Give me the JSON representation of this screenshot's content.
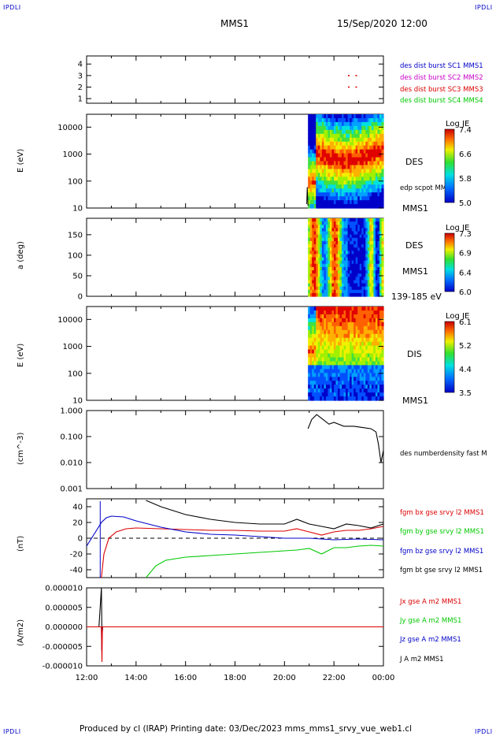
{
  "header": {
    "corner_label": "IPDLI",
    "spacecraft": "MMS1",
    "date_time": "15/Sep/2020 12:00"
  },
  "footer": {
    "text": "Produced by cl (IRAP)   Printing date: 03/Dec/2023   mms_mms1_srvy_vue_web1.cl"
  },
  "x_axis": {
    "ticks": [
      "12:00",
      "14:00",
      "16:00",
      "18:00",
      "20:00",
      "22:00",
      "00:00"
    ],
    "range_hours": [
      12,
      24
    ]
  },
  "panels": {
    "burst": {
      "ticks": [
        "4",
        "3",
        "2",
        "1"
      ],
      "legend": [
        {
          "text": "des dist burst SC1 MMS1",
          "color": "#0000c8"
        },
        {
          "text": "des dist burst SC2 MMS2",
          "color": "#c800c8"
        },
        {
          "text": "des dist burst SC3 MMS3",
          "color": "#dc0000"
        },
        {
          "text": "des dist burst SC4 MMS4",
          "color": "#00c800"
        }
      ]
    },
    "des_energy": {
      "ylabel": "E (eV)",
      "ticks": [
        "10000",
        "1000",
        "100",
        "10"
      ],
      "label_species": "DES",
      "label_scpot": "edp scpot MMS1",
      "label_sc": "MMS1",
      "colorbar": {
        "title": "Log JE",
        "ticks": [
          "7.4",
          "6.6",
          "5.8",
          "5.0"
        ]
      }
    },
    "des_pitch": {
      "ylabel": "a (deg)",
      "ticks": [
        "150",
        "100",
        "50",
        "0"
      ],
      "label_species": "DES",
      "label_sc": "MMS1",
      "label_range": "139-185 eV",
      "colorbar": {
        "title": "Log JE",
        "ticks": [
          "7.3",
          "6.9",
          "6.4",
          "6.0"
        ]
      }
    },
    "dis_energy": {
      "ylabel": "E (eV)",
      "ticks": [
        "10000",
        "1000",
        "100",
        "10"
      ],
      "label_species": "DIS",
      "label_sc": "MMS1",
      "colorbar": {
        "title": "Log JE",
        "ticks": [
          "6.1",
          "5.2",
          "4.4",
          "3.5"
        ]
      }
    },
    "density": {
      "ylabel": "(cm^-3)",
      "ticks": [
        "1.000",
        "0.100",
        "0.010",
        "0.001"
      ],
      "legend": "des numberdensity fast M"
    },
    "bfield": {
      "ylabel": "(nT)",
      "ticks": [
        "40",
        "20",
        "0",
        "-20",
        "-40"
      ],
      "legend": [
        {
          "text": "fgm bx gse srvy l2 MMS1",
          "color": "#dc0000"
        },
        {
          "text": "fgm by gse srvy l2 MMS1",
          "color": "#00c800"
        },
        {
          "text": "fgm bz gse srvy l2 MMS1",
          "color": "#0000c8"
        },
        {
          "text": "fgm bt gse srvy l2 MMS1",
          "color": "#000000"
        }
      ]
    },
    "current": {
      "ylabel": "(A/m2)",
      "ticks": [
        "0.000010",
        "0.000005",
        "0.000000",
        "-0.000005",
        "-0.000010"
      ],
      "legend": [
        {
          "text": "Jx gse A m2 MMS1",
          "color": "#dc0000"
        },
        {
          "text": "Jy gse A m2 MMS1",
          "color": "#00c800"
        },
        {
          "text": "Jz gse A m2 MMS1",
          "color": "#0000c8"
        },
        {
          "text": "J A m2 MMS1",
          "color": "#000000"
        }
      ]
    }
  },
  "chart_data": {
    "type": "line",
    "title": "MMS1 15/Sep/2020 12:00",
    "xlabel": "",
    "x_range": [
      "12:00",
      "00:00"
    ],
    "series": [
      {
        "name": "fgm bx gse srvy l2 MMS1",
        "panel": "bfield",
        "x_hours": [
          12.6,
          12.7,
          12.9,
          13.2,
          13.6,
          14.0,
          15.0,
          16.0,
          17.0,
          18.0,
          19.0,
          20.0,
          20.5,
          21.0,
          21.5,
          22.0,
          22.5,
          23.0,
          23.5,
          24.0
        ],
        "values": [
          -50,
          -20,
          0,
          8,
          12,
          13,
          12,
          11,
          10,
          10,
          9,
          9,
          12,
          8,
          4,
          8,
          10,
          10,
          12,
          15
        ]
      },
      {
        "name": "fgm by gse srvy l2 MMS1",
        "panel": "bfield",
        "x_hours": [
          14.4,
          14.8,
          15.2,
          16.0,
          17.0,
          18.0,
          19.0,
          20.0,
          20.5,
          21.0,
          21.5,
          22.0,
          22.5,
          23.0,
          23.5,
          24.0
        ],
        "values": [
          -50,
          -35,
          -28,
          -24,
          -22,
          -20,
          -18,
          -16,
          -15,
          -13,
          -20,
          -12,
          -12,
          -10,
          -9,
          -10
        ]
      },
      {
        "name": "fgm bz gse srvy l2 MMS1",
        "panel": "bfield",
        "x_hours": [
          12.0,
          12.2,
          12.4,
          12.6,
          12.8,
          13.0,
          13.5,
          14.0,
          15.0,
          16.0,
          17.0,
          18.0,
          19.0,
          20.0,
          21.0,
          22.0,
          23.0,
          24.0
        ],
        "values": [
          -10,
          0,
          10,
          20,
          26,
          28,
          27,
          22,
          14,
          8,
          5,
          4,
          2,
          0,
          0,
          -2,
          -1,
          -2
        ]
      },
      {
        "name": "fgm bt gse srvy l2 MMS1",
        "panel": "bfield",
        "x_hours": [
          14.4,
          15.0,
          16.0,
          17.0,
          18.0,
          19.0,
          20.0,
          20.5,
          21.0,
          21.5,
          22.0,
          22.5,
          23.0,
          23.5,
          24.0
        ],
        "values": [
          48,
          40,
          30,
          24,
          20,
          18,
          18,
          24,
          18,
          15,
          12,
          18,
          16,
          13,
          18
        ]
      },
      {
        "name": "des numberdensity fast M",
        "panel": "density",
        "x_hours": [
          20.95,
          21.1,
          21.3,
          21.5,
          21.8,
          22.0,
          22.4,
          22.8,
          23.2,
          23.5,
          23.7,
          23.8,
          23.9,
          24.0
        ],
        "values": [
          0.2,
          0.45,
          0.7,
          0.5,
          0.3,
          0.35,
          0.25,
          0.25,
          0.22,
          0.2,
          0.15,
          0.05,
          0.01,
          0.03
        ]
      },
      {
        "name": "J A m2 MMS1",
        "panel": "current",
        "x_hours": [
          12.0,
          12.5,
          12.6,
          12.62,
          12.65,
          13.0,
          16.0,
          20.0,
          24.0
        ],
        "values": [
          0,
          0,
          1e-05,
          -3e-06,
          0,
          0,
          0,
          0,
          0
        ]
      },
      {
        "name": "Jz gse A m2 MMS1",
        "panel": "current",
        "x_hours": [
          12.0,
          12.6,
          12.61,
          12.63,
          13.0,
          24.0
        ],
        "values": [
          0,
          0,
          -6e-06,
          0,
          0,
          0
        ]
      },
      {
        "name": "Jx gse A m2 MMS1",
        "panel": "current",
        "x_hours": [
          12.0,
          12.6,
          12.62,
          12.64,
          13.0,
          24.0
        ],
        "values": [
          0,
          0,
          -9e-06,
          0,
          0,
          0
        ]
      }
    ],
    "burst_markers": [
      {
        "spacecraft": "MMS3",
        "level": 3,
        "x_hours": [
          22.6,
          22.9
        ]
      },
      {
        "spacecraft": "MMS3",
        "level": 2,
        "x_hours": [
          22.6,
          22.9
        ]
      }
    ],
    "spectrogram_start_hour": 20.95
  }
}
